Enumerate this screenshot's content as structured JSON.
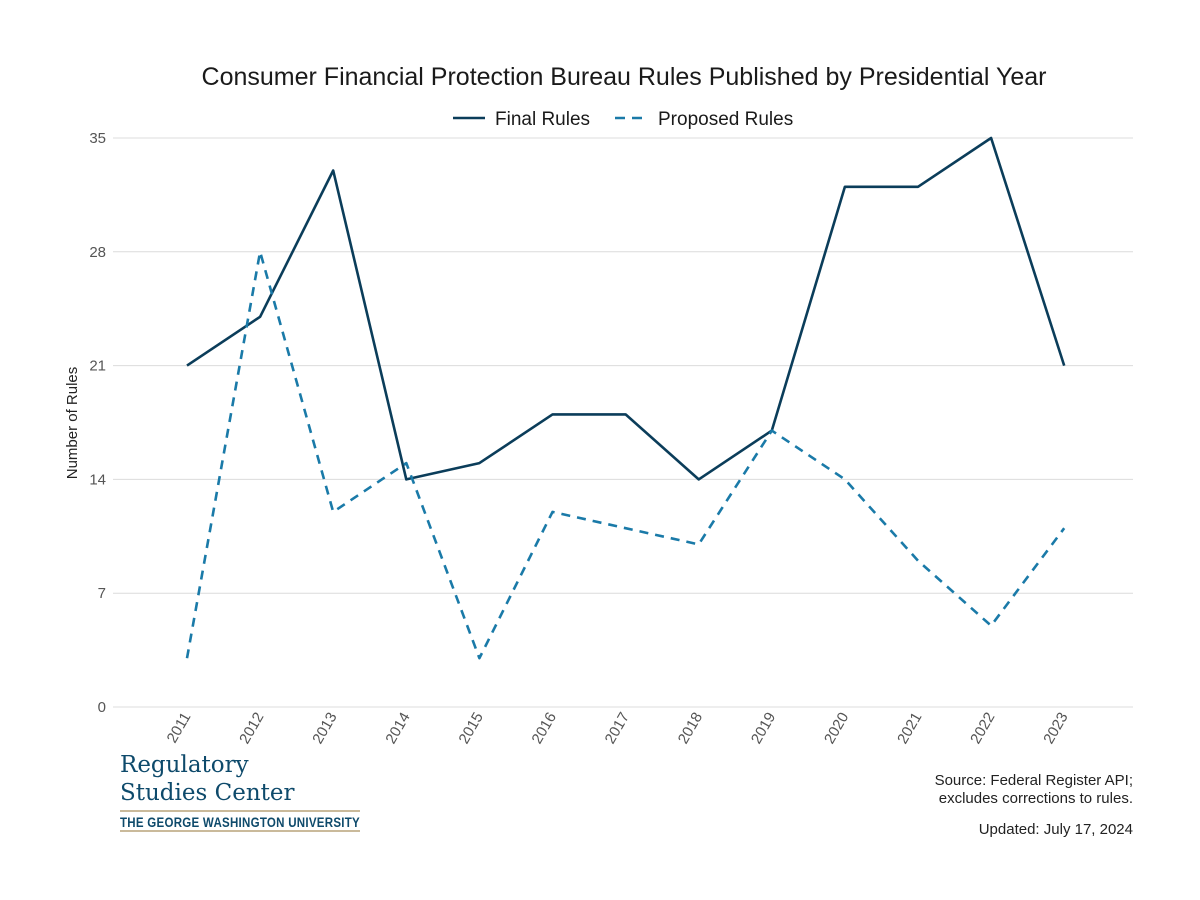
{
  "chart_data": {
    "type": "line",
    "title": "Consumer Financial Protection Bureau Rules Published by Presidential Year",
    "xlabel": "",
    "ylabel": "Number of Rules",
    "categories": [
      "2011",
      "2012",
      "2013",
      "2014",
      "2015",
      "2016",
      "2017",
      "2018",
      "2019",
      "2020",
      "2021",
      "2022",
      "2023"
    ],
    "yticks": [
      0,
      7,
      14,
      21,
      28,
      35
    ],
    "ylim": [
      0,
      35
    ],
    "grid": true,
    "legend_position": "top-center",
    "series": [
      {
        "name": "Final Rules",
        "style": "solid",
        "color": "#0b3d5a",
        "values": [
          21,
          24,
          33,
          14,
          15,
          18,
          18,
          14,
          17,
          32,
          32,
          35,
          21
        ]
      },
      {
        "name": "Proposed Rules",
        "style": "dashed",
        "color": "#1a7aa8",
        "values": [
          3,
          28,
          12,
          15,
          3,
          12,
          11,
          10,
          17,
          14,
          9,
          5,
          11
        ]
      }
    ]
  },
  "footer": {
    "source_line1": "Source: Federal Register API;",
    "source_line2": "excludes corrections to rules.",
    "updated": "Updated: July 17, 2024"
  },
  "logo": {
    "line1": "Regulatory",
    "line2": "Studies Center",
    "university": "THE GEORGE WASHINGTON UNIVERSITY",
    "color": "#0e4a6b",
    "rule_color": "#b8a37a"
  }
}
